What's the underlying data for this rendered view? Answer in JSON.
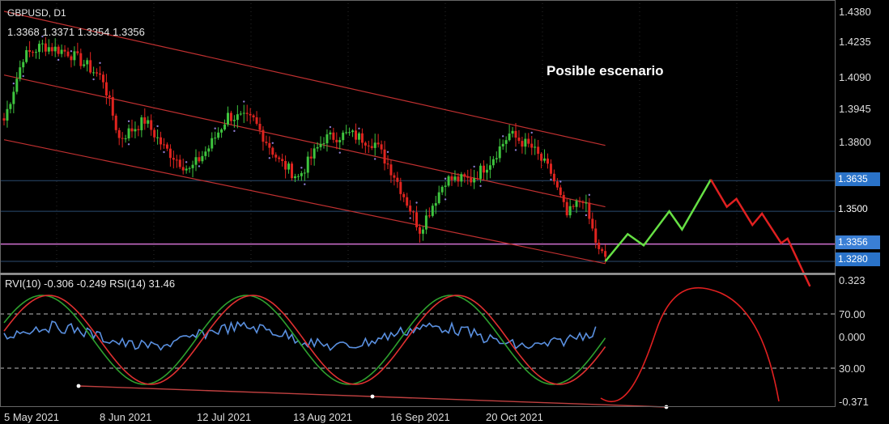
{
  "header": {
    "symbol": "GBPUSD, D1",
    "ohlc": "1.3368 1.3371 1.3354 1.3356"
  },
  "annotation": "Posible escenario",
  "indicator_header": "RVI(10) -0.306 -0.249 RSI(14) 31.46",
  "price_axis": [
    "1.4380",
    "1.4235",
    "1.4090",
    "1.3945",
    "1.3800",
    "1.3635",
    "1.3500",
    "1.3356",
    "1.3280"
  ],
  "highlighted_prices": [
    {
      "label": "1.3635",
      "value": 1.3635,
      "color": "#2a73c9"
    },
    {
      "label": "1.3500",
      "value": 1.35,
      "color": ""
    },
    {
      "label": "1.3356",
      "value": 1.3356,
      "color": "#3a7fd5"
    },
    {
      "label": "1.3280",
      "value": 1.328,
      "color": "#2a73c9"
    }
  ],
  "indicator_axis": [
    "0.323",
    "70.00",
    "0.000",
    "30.00",
    "-0.371"
  ],
  "date_labels": [
    "5 May 2021",
    "8 Jun 2021",
    "12 Jul 2021",
    "13 Aug 2021",
    "16 Sep 2021",
    "20 Oct 2021"
  ],
  "colors": {
    "bull": "#3ec43e",
    "bear": "#e0241f",
    "channel": "#c03030",
    "hline": "#2b4b6f",
    "current_line": "#d070d0",
    "rvi_main": "#2ea02e",
    "rvi_signal": "#e03030",
    "rsi": "#5a90e0",
    "scenario_up": "#66e044",
    "scenario_down": "#e02020"
  },
  "chart_data": {
    "type": "candlestick",
    "symbol": "GBPUSD",
    "timeframe": "D1",
    "ylim": [
      1.3255,
      1.438
    ],
    "price_levels": [
      1.3635,
      1.35,
      1.3356,
      1.328
    ],
    "waypoints": [
      [
        0,
        1.39
      ],
      [
        6,
        1.418
      ],
      [
        12,
        1.423
      ],
      [
        20,
        1.42
      ],
      [
        26,
        1.414
      ],
      [
        31,
        1.408
      ],
      [
        36,
        1.382
      ],
      [
        44,
        1.39
      ],
      [
        50,
        1.378
      ],
      [
        58,
        1.368
      ],
      [
        64,
        1.378
      ],
      [
        70,
        1.392
      ],
      [
        78,
        1.39
      ],
      [
        86,
        1.372
      ],
      [
        92,
        1.365
      ],
      [
        100,
        1.382
      ],
      [
        108,
        1.384
      ],
      [
        116,
        1.38
      ],
      [
        122,
        1.366
      ],
      [
        130,
        1.342
      ],
      [
        138,
        1.364
      ],
      [
        146,
        1.364
      ],
      [
        152,
        1.372
      ],
      [
        158,
        1.384
      ],
      [
        165,
        1.378
      ],
      [
        171,
        1.367
      ],
      [
        176,
        1.348
      ],
      [
        181,
        1.356
      ],
      [
        186,
        1.332
      ],
      [
        188,
        1.33
      ]
    ],
    "channel_lines": [
      [
        [
          0,
          1.438
        ],
        [
          188,
          1.379
        ]
      ],
      [
        [
          0,
          1.41
        ],
        [
          188,
          1.352
        ]
      ],
      [
        [
          0,
          1.3815
        ],
        [
          188,
          1.327
        ]
      ]
    ],
    "scenario_up": [
      [
        188,
        1.328
      ],
      [
        195,
        1.34
      ],
      [
        200,
        1.335
      ],
      [
        208,
        1.35
      ],
      [
        212,
        1.342
      ],
      [
        221,
        1.364
      ]
    ],
    "scenario_down": [
      [
        221,
        1.364
      ],
      [
        226,
        1.352
      ],
      [
        229,
        1.3555
      ],
      [
        234,
        1.344
      ],
      [
        237,
        1.349
      ],
      [
        243,
        1.336
      ],
      [
        245,
        1.338
      ],
      [
        252,
        1.317
      ]
    ],
    "indicator": {
      "rvi_values": [
        -0.306,
        -0.249
      ],
      "rsi_value": 31.46,
      "levels": [
        70.0,
        30.0
      ],
      "ylim": [
        -0.371,
        0.323
      ]
    }
  }
}
